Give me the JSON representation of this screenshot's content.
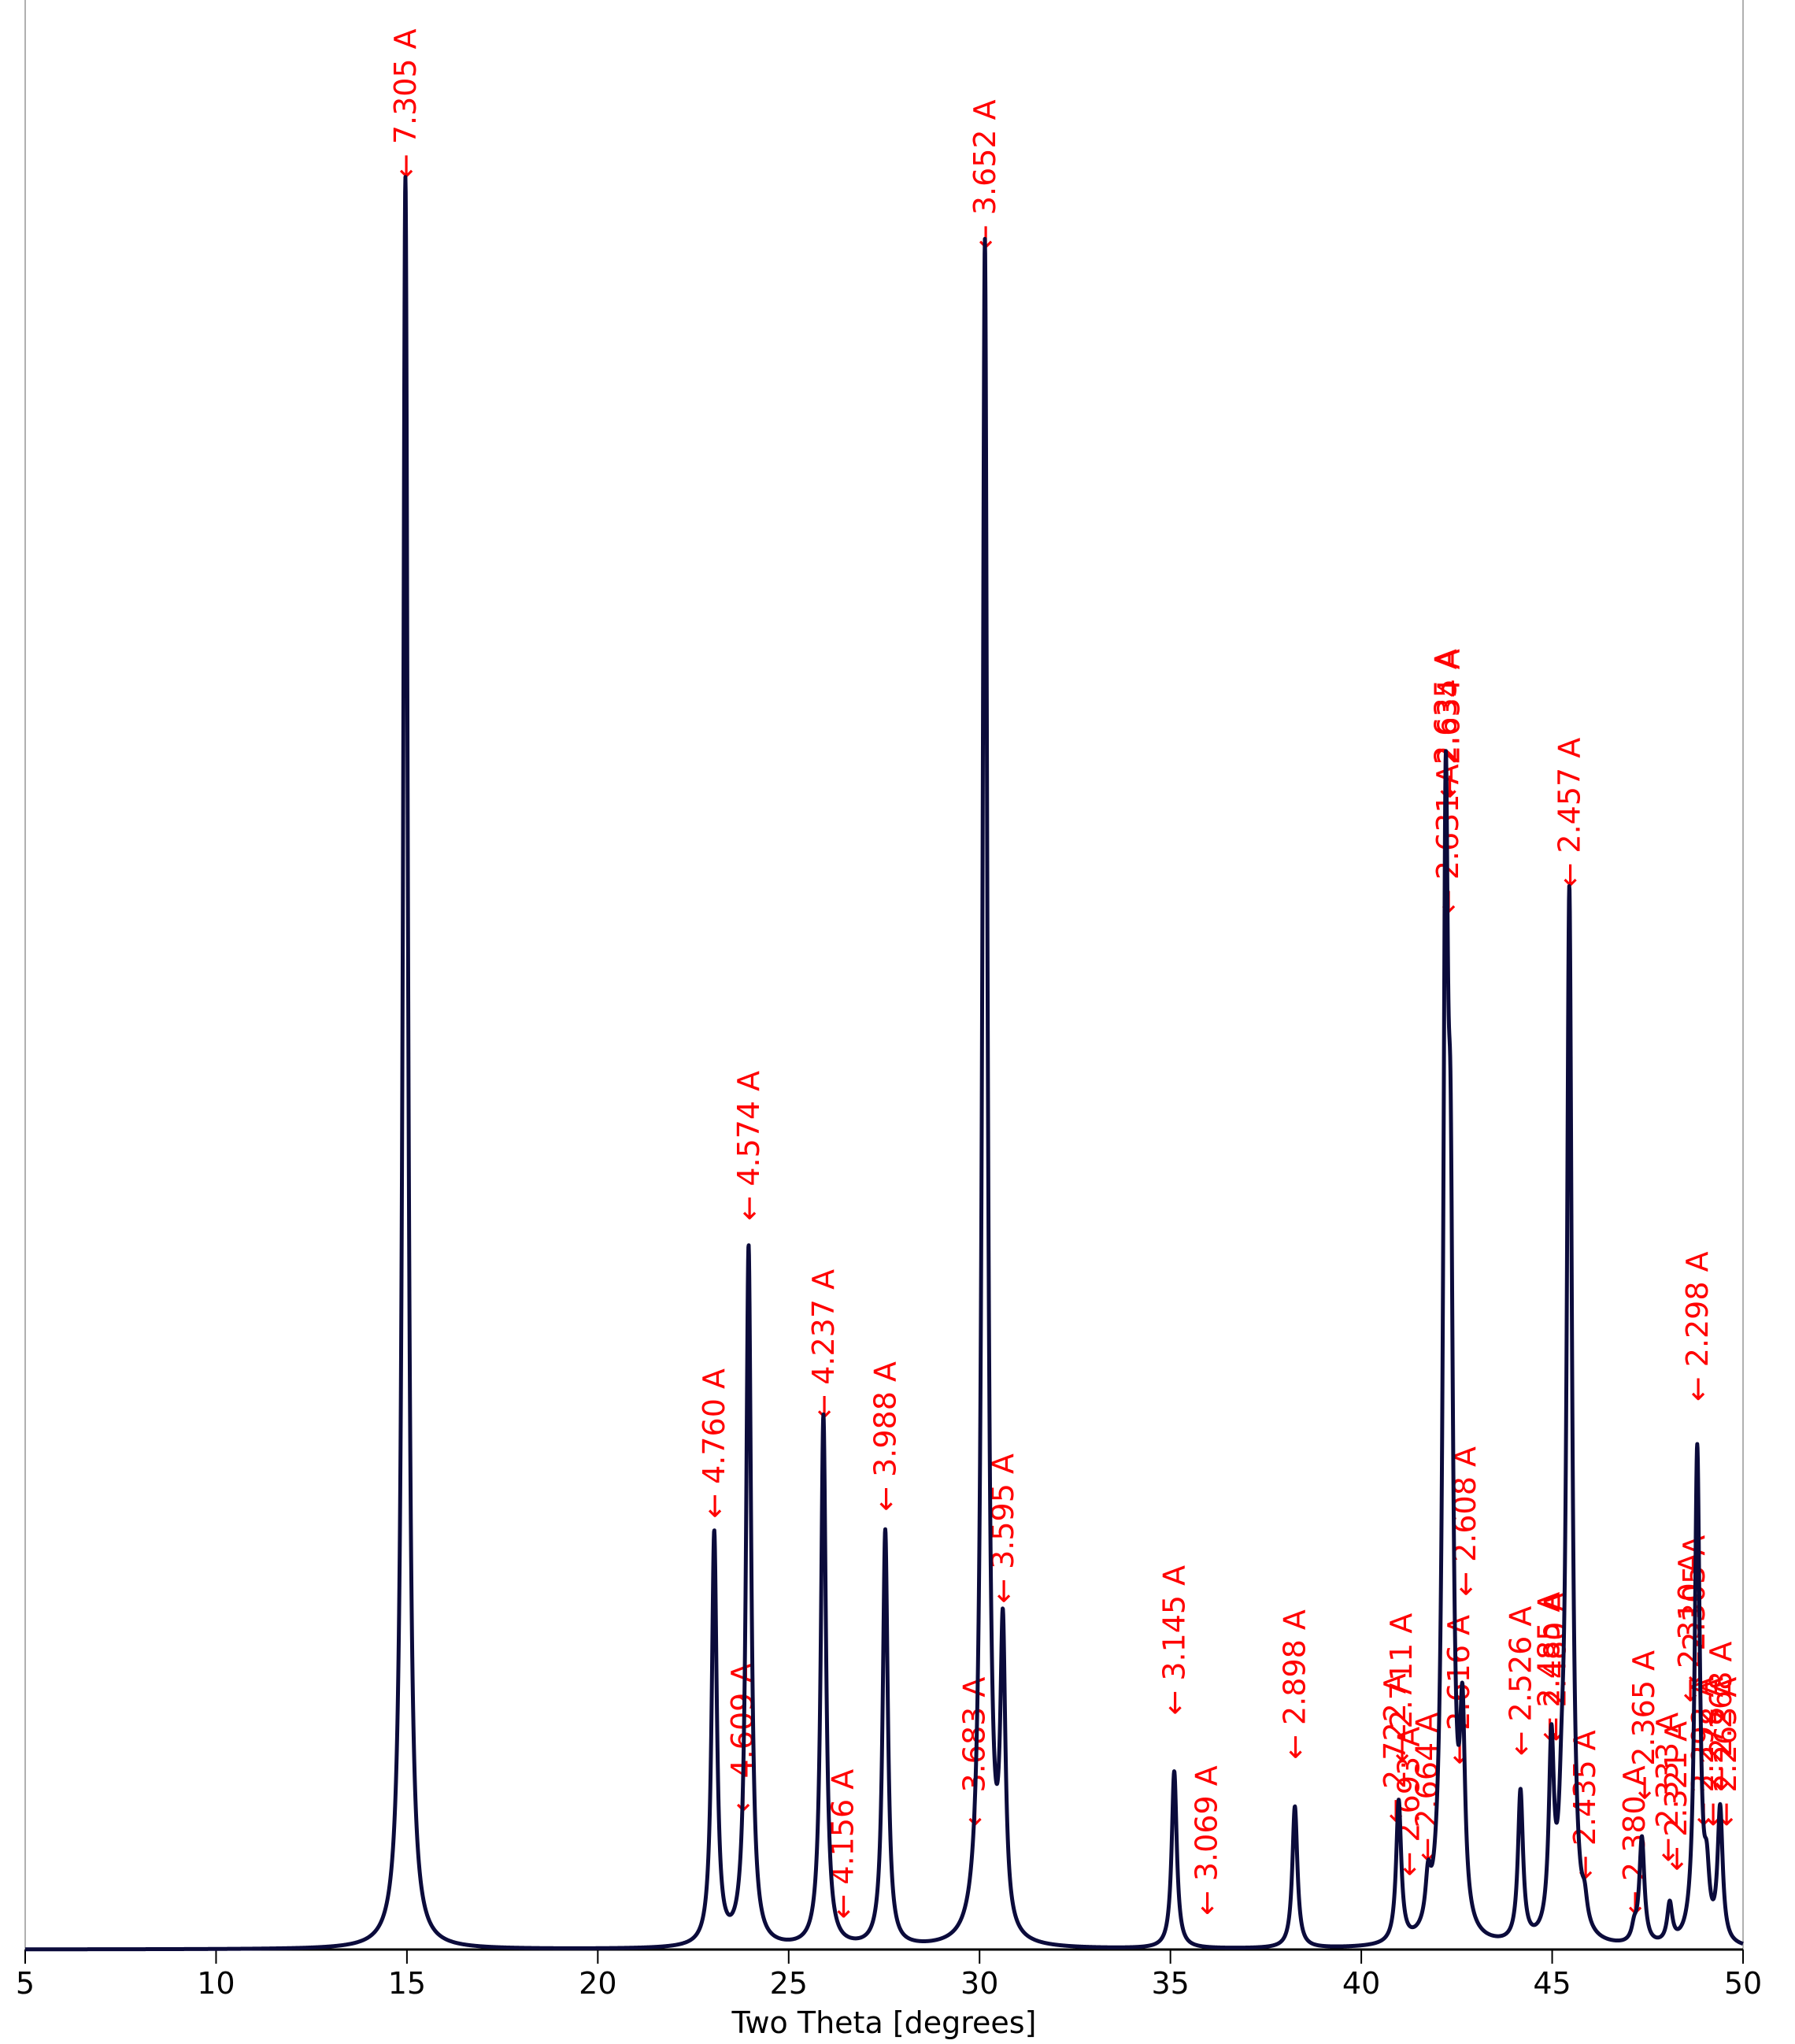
{
  "chart_data": {
    "type": "line",
    "title": "",
    "xlabel": "Two Theta [degrees]",
    "ylabel": "",
    "xlim": [
      5,
      50
    ],
    "ylim": [
      0,
      1.1
    ],
    "xticks": [
      5,
      10,
      15,
      20,
      25,
      30,
      35,
      40,
      45,
      50
    ],
    "grid": false,
    "line_color": "#0b0b3b",
    "label_color": "#ff0000",
    "peaks": [
      {
        "x": 14.96,
        "h": 1.0
      },
      {
        "x": 23.05,
        "h": 0.233
      },
      {
        "x": 23.95,
        "h": 0.395
      },
      {
        "x": 25.91,
        "h": 0.3
      },
      {
        "x": 27.53,
        "h": 0.235
      },
      {
        "x": 30.14,
        "h": 0.96
      },
      {
        "x": 30.61,
        "h": 0.165
      },
      {
        "x": 35.1,
        "h": 0.1
      },
      {
        "x": 38.26,
        "h": 0.08
      },
      {
        "x": 40.98,
        "h": 0.08
      },
      {
        "x": 41.75,
        "h": 0.025
      },
      {
        "x": 42.21,
        "h": 0.58
      },
      {
        "x": 42.34,
        "h": 0.32
      },
      {
        "x": 42.65,
        "h": 0.11
      },
      {
        "x": 44.17,
        "h": 0.085
      },
      {
        "x": 44.98,
        "h": 0.105
      },
      {
        "x": 45.25,
        "h": 0.04
      },
      {
        "x": 45.45,
        "h": 0.59
      },
      {
        "x": 45.85,
        "h": 0.013
      },
      {
        "x": 47.15,
        "h": 0.008
      },
      {
        "x": 47.35,
        "h": 0.06
      },
      {
        "x": 48.08,
        "h": 0.022
      },
      {
        "x": 48.8,
        "h": 0.28
      },
      {
        "x": 49.05,
        "h": 0.03
      },
      {
        "x": 49.4,
        "h": 0.075
      }
    ],
    "peak_width": 0.08,
    "annotations": [
      {
        "text": "7.305 A",
        "x": 14.96,
        "y": 1.0
      },
      {
        "text": "4.760 A",
        "x": 23.05,
        "y": 0.244
      },
      {
        "text": "4.609 A",
        "x": 23.79,
        "y": 0.078
      },
      {
        "text": "4.574 A",
        "x": 23.95,
        "y": 0.412
      },
      {
        "text": "4.237 A",
        "x": 25.91,
        "y": 0.3
      },
      {
        "text": "4.156 A",
        "x": 26.42,
        "y": 0.018
      },
      {
        "text": "3.988 A",
        "x": 27.53,
        "y": 0.248
      },
      {
        "text": "3.683 A",
        "x": 29.86,
        "y": 0.07
      },
      {
        "text": "3.652 A",
        "x": 30.14,
        "y": 0.96
      },
      {
        "text": "3.595 A",
        "x": 30.61,
        "y": 0.196
      },
      {
        "text": "3.145 A",
        "x": 35.1,
        "y": 0.133
      },
      {
        "text": "3.069 A",
        "x": 35.95,
        "y": 0.02
      },
      {
        "text": "2.898 A",
        "x": 38.26,
        "y": 0.108
      },
      {
        "text": "2.722 A",
        "x": 40.88,
        "y": 0.072
      },
      {
        "text": "2.711 A",
        "x": 41.05,
        "y": 0.106
      },
      {
        "text": "2.693 A",
        "x": 41.25,
        "y": 0.042
      },
      {
        "text": "2.664 A",
        "x": 41.72,
        "y": 0.05
      },
      {
        "text": "2.635 A",
        "x": 42.21,
        "y": 0.65
      },
      {
        "text": "2.634 A",
        "x": 42.3,
        "y": 0.65
      },
      {
        "text": "2.631 A",
        "x": 42.27,
        "y": 0.585
      },
      {
        "text": "2.616 A",
        "x": 42.55,
        "y": 0.105
      },
      {
        "text": "2.608 A",
        "x": 42.72,
        "y": 0.2
      },
      {
        "text": "2.526 A",
        "x": 44.17,
        "y": 0.11
      },
      {
        "text": "2.485 A",
        "x": 44.92,
        "y": 0.118
      },
      {
        "text": "2.480 A",
        "x": 45.08,
        "y": 0.118
      },
      {
        "text": "2.457 A",
        "x": 45.45,
        "y": 0.6
      },
      {
        "text": "2.435 A",
        "x": 45.85,
        "y": 0.04
      },
      {
        "text": "2.380 A",
        "x": 47.15,
        "y": 0.02
      },
      {
        "text": "2.365 A",
        "x": 47.4,
        "y": 0.085
      },
      {
        "text": "2.333 A",
        "x": 48.02,
        "y": 0.05
      },
      {
        "text": "2.321 A",
        "x": 48.25,
        "y": 0.045
      },
      {
        "text": "2.310 A",
        "x": 48.6,
        "y": 0.14
      },
      {
        "text": "2.305 A",
        "x": 48.72,
        "y": 0.15
      },
      {
        "text": "2.298 A",
        "x": 48.8,
        "y": 0.31
      },
      {
        "text": "2.292 A",
        "x": 48.95,
        "y": 0.07
      },
      {
        "text": "2.278 A",
        "x": 49.2,
        "y": 0.07
      },
      {
        "text": "2.268 A",
        "x": 49.42,
        "y": 0.09
      },
      {
        "text": "2.263 A",
        "x": 49.55,
        "y": 0.07
      }
    ]
  }
}
